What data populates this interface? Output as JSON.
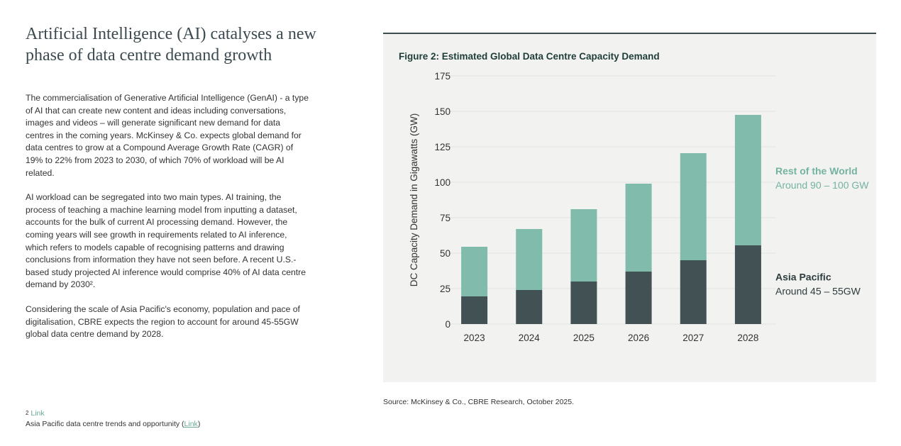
{
  "page": {
    "title": "Artificial Intelligence (AI) catalyses a new phase of data centre demand growth",
    "paragraphs": [
      "The commercialisation of Generative Artificial Intelligence (GenAI) - a type of AI that can create new content and ideas including conversations, images and videos – will generate significant new demand for data centres in the coming years. McKinsey & Co. expects global demand for data centres to grow at a Compound Average Growth Rate (CAGR) of 19% to 22% from 2023 to 2030, of which 70% of workload will be AI related.",
      "AI workload can be segregated into two main types. AI training, the process of teaching a machine learning model from inputting a dataset, accounts for the bulk of current AI processing demand. However, the coming years will see growth in requirements related to AI inference, which refers to models capable of recognising patterns and drawing conclusions from information they have not seen before. A recent U.S.-based study projected AI inference would comprise 40% of AI data centre demand by 2030².",
      "Considering the scale of Asia Pacific's economy, population and pace of digitalisation, CBRE expects the region to account for around 45-55GW global data centre demand by 2028."
    ],
    "footnote": {
      "number": "2",
      "link_label": "Link",
      "text_before": "Asia Pacific data centre trends and opportunity (",
      "text_link": "Link",
      "text_after": ")"
    },
    "source": "Source: McKinsey & Co., CBRE Research, October 2025."
  },
  "colors": {
    "asia_pacific": "#415154",
    "rest_of_world": "#80bbab",
    "grid": "#e1e1e1",
    "axis_text": "#333333",
    "label_dark": "#2e3c3e",
    "label_green": "#74b3a1"
  },
  "chart_data": {
    "type": "bar",
    "stacked": true,
    "title": "Figure 2: Estimated Global Data Centre Capacity Demand",
    "categories": [
      "2023",
      "2024",
      "2025",
      "2026",
      "2027",
      "2028"
    ],
    "series": [
      {
        "name": "Asia Pacific",
        "values": [
          19.5,
          24,
          30,
          37,
          45,
          55.5
        ]
      },
      {
        "name": "Rest of the World",
        "values": [
          35,
          43,
          51,
          62,
          75.5,
          92
        ]
      }
    ],
    "xlabel": "",
    "ylabel": "DC Capacity Demand in Gigawatts (GW)",
    "ylim": [
      0,
      175
    ],
    "yticks": [
      0,
      25,
      50,
      75,
      100,
      125,
      150,
      175
    ],
    "grid": true,
    "annotations": [
      {
        "series": "Rest of the World",
        "title": "Rest of the World",
        "subtitle": "Around 90 – 100 GW"
      },
      {
        "series": "Asia Pacific",
        "title": "Asia Pacific",
        "subtitle": "Around 45 – 55GW"
      }
    ]
  }
}
